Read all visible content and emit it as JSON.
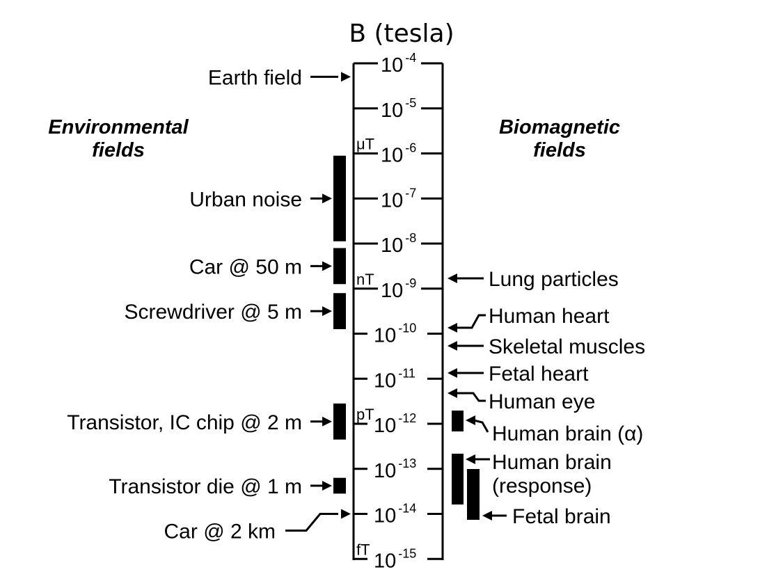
{
  "title": "B (tesla)",
  "headings": {
    "left": [
      "Environmental",
      "fields"
    ],
    "right": [
      "Biomagnetic",
      "fields"
    ]
  },
  "axis": {
    "base": "10",
    "ticks": [
      "-4",
      "-5",
      "-6",
      "-7",
      "-8",
      "-9",
      "-10",
      "-11",
      "-12",
      "-13",
      "-14",
      "-15"
    ],
    "units": [
      {
        "label": "μT",
        "exp": -6
      },
      {
        "label": "nT",
        "exp": -9
      },
      {
        "label": "pT",
        "exp": -12
      },
      {
        "label": "fT",
        "exp": -15
      }
    ]
  },
  "environmental": [
    {
      "label": "Earth field",
      "exp_from": -4.3,
      "exp_to": -4.3,
      "bar": false
    },
    {
      "label": "Urban  noise",
      "exp_from": -6.05,
      "exp_to": -7.95,
      "bar": true
    },
    {
      "label": "Car @ 50 m",
      "exp_from": -8.1,
      "exp_to": -8.9,
      "bar": true
    },
    {
      "label": "Screwdriver @ 5 m",
      "exp_from": -9.1,
      "exp_to": -9.9,
      "bar": true
    },
    {
      "label": "Transistor, IC chip @ 2 m",
      "exp_from": -11.55,
      "exp_to": -12.35,
      "bar": true
    },
    {
      "label": "Transistor  die @ 1 m",
      "exp_from": -13.2,
      "exp_to": -13.55,
      "bar": true
    },
    {
      "label": "Car @ 2 km",
      "exp_from": -14,
      "exp_to": -14,
      "bar": false
    }
  ],
  "biomagnetic": [
    {
      "label": "Lung  particles",
      "exp_from": -9.2,
      "exp_to": -9.2,
      "bar": false
    },
    {
      "label": "Human  heart",
      "exp_from": -9.9,
      "exp_to": -9.9,
      "bar": false
    },
    {
      "label": "Skeletal  muscles",
      "exp_from": -10.25,
      "exp_to": -10.25,
      "bar": false
    },
    {
      "label": "Fetal heart",
      "exp_from": -10.85,
      "exp_to": -10.85,
      "bar": false
    },
    {
      "label": "Human eye",
      "exp_from": -11.3,
      "exp_to": -11.3,
      "bar": false
    },
    {
      "label": "Human  brain (α)",
      "exp_from": -11.7,
      "exp_to": -12.15,
      "bar": true
    },
    {
      "label": [
        "Human  brain",
        "(response)"
      ],
      "exp_from": -12.7,
      "exp_to": -13.75,
      "bar": true
    },
    {
      "label": "Fetal brain",
      "exp_from": -12.95,
      "exp_to": -14.1,
      "bar": true
    }
  ]
}
